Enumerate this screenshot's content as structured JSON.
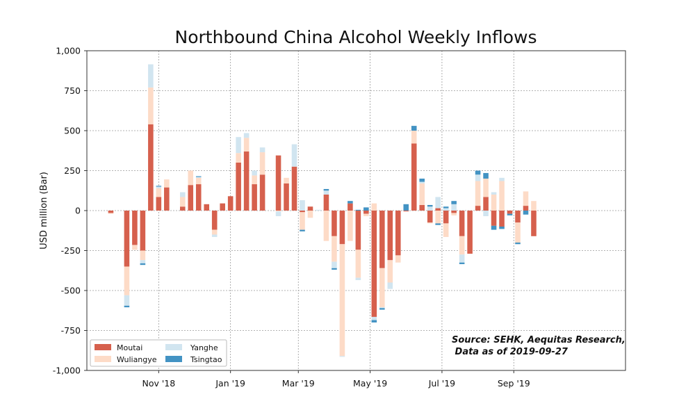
{
  "chart_data": {
    "type": "bar",
    "stacked": true,
    "title": "Northbound China Alcohol Weekly Inflows",
    "xlabel": "",
    "ylabel": "USD million (Bar)",
    "ylim": [
      -1000,
      1000
    ],
    "yticks": [
      -1000,
      -750,
      -500,
      -250,
      0,
      250,
      500,
      750,
      1000
    ],
    "ytick_labels": [
      "-1,000",
      "-750",
      "-500",
      "-250",
      "0",
      "250",
      "500",
      "750",
      "1,000"
    ],
    "x_range_weeks": [
      0,
      67.5
    ],
    "xticks": [
      {
        "label": "Nov '18",
        "week": 9.0
      },
      {
        "label": "Jan '19",
        "week": 18.0
      },
      {
        "label": "Mar '19",
        "week": 26.5
      },
      {
        "label": "May '19",
        "week": 35.5
      },
      {
        "label": "Jul '19",
        "week": 44.5
      },
      {
        "label": "Sep '19",
        "week": 53.5
      }
    ],
    "grid": true,
    "legend_position": "lower-left",
    "annotation": [
      "Source: SEHK, Aequitas Research,",
      " Data as of 2019-09-27"
    ],
    "week_start": 3,
    "colors": {
      "Moutai": "#d6604d",
      "Wuliangye": "#fddbc7",
      "Yanghe": "#d1e5f0",
      "Tsingtao": "#4393c3"
    },
    "series": [
      {
        "name": "Moutai",
        "values": [
          -15,
          0,
          -350,
          -215,
          -250,
          540,
          85,
          145,
          0,
          25,
          160,
          165,
          40,
          -120,
          45,
          90,
          300,
          370,
          165,
          225,
          0,
          345,
          170,
          275,
          -10,
          25,
          0,
          100,
          -160,
          -210,
          45,
          -245,
          -20,
          -665,
          -360,
          -310,
          -280,
          -5,
          420,
          35,
          -75,
          15,
          -80,
          -15,
          -160,
          -270,
          30,
          85,
          -95,
          -100,
          -20,
          -75,
          30,
          -160
        ]
      },
      {
        "name": "Wuliangye",
        "values": [
          -5,
          0,
          -180,
          -30,
          -60,
          230,
          55,
          50,
          0,
          60,
          90,
          40,
          0,
          -30,
          0,
          0,
          60,
          85,
          55,
          140,
          0,
          -5,
          35,
          0,
          -110,
          -45,
          0,
          -190,
          -160,
          -700,
          -190,
          -175,
          -15,
          45,
          -245,
          -140,
          -45,
          0,
          80,
          135,
          -5,
          -80,
          -85,
          -15,
          -115,
          0,
          155,
          115,
          100,
          185,
          0,
          -125,
          90,
          60
        ]
      },
      {
        "name": "Yanghe",
        "values": [
          0,
          0,
          -65,
          0,
          -20,
          145,
          10,
          0,
          0,
          30,
          0,
          5,
          0,
          -15,
          0,
          0,
          100,
          30,
          30,
          30,
          0,
          -30,
          0,
          140,
          65,
          0,
          5,
          25,
          -40,
          -5,
          0,
          -15,
          0,
          -20,
          -5,
          -40,
          0,
          0,
          0,
          10,
          25,
          70,
          15,
          40,
          -50,
          0,
          40,
          -35,
          15,
          20,
          0,
          0,
          0,
          0
        ]
      },
      {
        "name": "Tsingtao",
        "values": [
          0,
          0,
          -10,
          0,
          -10,
          0,
          5,
          0,
          0,
          0,
          0,
          5,
          0,
          0,
          0,
          0,
          0,
          0,
          0,
          0,
          0,
          0,
          0,
          0,
          -10,
          0,
          0,
          10,
          -10,
          0,
          15,
          5,
          20,
          -15,
          -10,
          0,
          0,
          40,
          30,
          20,
          10,
          -10,
          10,
          20,
          -10,
          0,
          25,
          35,
          -25,
          -15,
          -10,
          -10,
          -25,
          0
        ]
      }
    ]
  }
}
